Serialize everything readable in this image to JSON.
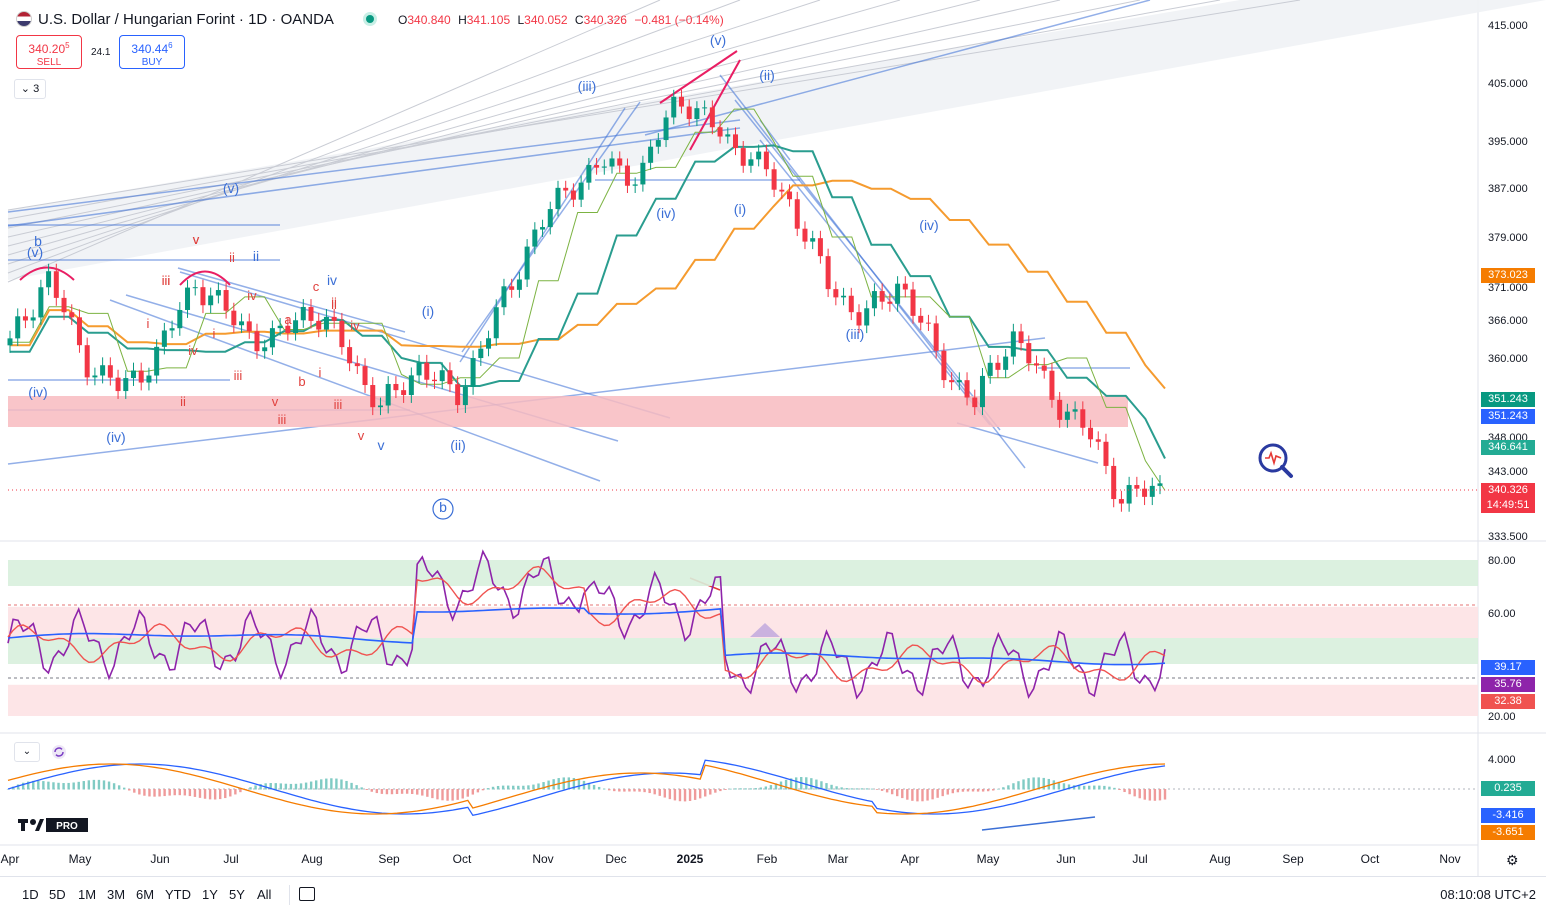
{
  "header": {
    "title": "U.S. Dollar / Hungarian Forint · 1D · OANDA",
    "ohlc": [
      {
        "k": "O",
        "v": "340.840"
      },
      {
        "k": "H",
        "v": "341.105"
      },
      {
        "k": "L",
        "v": "340.052"
      },
      {
        "k": "C",
        "v": "340.326"
      },
      {
        "k": "",
        "v": "−0.481 (−0.14%)"
      }
    ]
  },
  "trade": {
    "sell_price": "340.20",
    "sell_price_sup": "5",
    "sell_label": "SELL",
    "spread": "24.1",
    "buy_price": "340.44",
    "buy_price_sup": "6",
    "buy_label": "BUY",
    "collapse_label": "3"
  },
  "colors": {
    "up": "#089981",
    "down": "#f23645",
    "wave_blue": "#3b6fd6",
    "wave_red": "#e0413e",
    "ema_orange": "#f59b2f",
    "ema_teal": "#2a9d8f",
    "rsi_purple": "#8e24aa",
    "rsi_ma_red": "#f05350",
    "rsi_blue": "#2962ff"
  },
  "chart_data": [
    {
      "type": "line",
      "title": "U.S. Dollar / Hungarian Forint · 1D · OANDA",
      "x_axis": [
        "Apr",
        "May",
        "Jun",
        "Jul",
        "Aug",
        "Sep",
        "Oct",
        "Nov",
        "Dec",
        "2025",
        "Feb",
        "Mar",
        "Apr",
        "May",
        "Jun",
        "Jul",
        "Aug",
        "Sep",
        "Oct",
        "Nov"
      ],
      "y_ticks": [
        "415.000",
        "405.000",
        "395.000",
        "387.000",
        "379.000",
        "371.000",
        "366.000",
        "360.000",
        "348.000",
        "343.000",
        "333.500"
      ],
      "ylim": [
        333.5,
        415
      ],
      "close_series": [
        {
          "x": "Apr",
          "y": 362
        },
        {
          "x": "Apr",
          "y": 373
        },
        {
          "x": "May",
          "y": 360
        },
        {
          "x": "May",
          "y": 355
        },
        {
          "x": "Jun",
          "y": 361
        },
        {
          "x": "Jun",
          "y": 372
        },
        {
          "x": "Jul",
          "y": 366
        },
        {
          "x": "Jul",
          "y": 362
        },
        {
          "x": "Aug",
          "y": 368
        },
        {
          "x": "Aug",
          "y": 362
        },
        {
          "x": "Sep",
          "y": 352
        },
        {
          "x": "Sep",
          "y": 359
        },
        {
          "x": "Oct",
          "y": 354
        },
        {
          "x": "Oct",
          "y": 365
        },
        {
          "x": "Nov",
          "y": 378
        },
        {
          "x": "Nov",
          "y": 387
        },
        {
          "x": "Dec",
          "y": 391
        },
        {
          "x": "Dec",
          "y": 389
        },
        {
          "x": "2025",
          "y": 403
        },
        {
          "x": "2025",
          "y": 397
        },
        {
          "x": "Feb",
          "y": 392
        },
        {
          "x": "Feb",
          "y": 385
        },
        {
          "x": "Mar",
          "y": 372
        },
        {
          "x": "Mar",
          "y": 366
        },
        {
          "x": "Apr",
          "y": 372
        },
        {
          "x": "Apr",
          "y": 360
        },
        {
          "x": "May",
          "y": 353
        },
        {
          "x": "May",
          "y": 364
        },
        {
          "x": "Jun",
          "y": 355
        },
        {
          "x": "Jun",
          "y": 349
        },
        {
          "x": "Jul",
          "y": 339
        },
        {
          "x": "Jul",
          "y": 340.326
        }
      ],
      "price_labels": [
        {
          "text": "373.023",
          "color": "#f57c00"
        },
        {
          "text": "351.243",
          "color": "#089981"
        },
        {
          "text": "351.243",
          "color": "#2962ff"
        },
        {
          "text": "346.641",
          "color": "#22ab94"
        },
        {
          "text": "340.326",
          "color": "#f23645"
        },
        {
          "text": "14:49:51",
          "color": "#f23645"
        }
      ],
      "zone": {
        "from": 350,
        "to": 355,
        "color": "#f8bbbf"
      },
      "wave_labels_blue": [
        "(v)",
        "(iii)",
        "(ii)",
        "(i)",
        "(iv)",
        "(i)",
        "(iv)",
        "(iii)",
        "(v)",
        "(iv)",
        "(ii)",
        "b",
        "v",
        "iv",
        "ii",
        "(v)",
        "(iv)",
        "b"
      ],
      "wave_labels_red": [
        "v",
        "ii",
        "iii",
        "i",
        "iv",
        "i",
        "ii",
        "iii",
        "iv",
        "a",
        "b",
        "c",
        "ii",
        "iv",
        "iii",
        "v",
        "i",
        "iii",
        "v",
        "ii",
        "iii",
        "v"
      ]
    },
    {
      "type": "line",
      "title": "",
      "y_ticks": [
        "80.00",
        "60.00",
        "20.00"
      ],
      "ylim": [
        15,
        85
      ],
      "bands": [
        {
          "from": 70,
          "to": 80
        },
        {
          "from": 40,
          "to": 50
        }
      ],
      "red_bands": [
        {
          "from": 50,
          "to": 62
        },
        {
          "from": 20,
          "to": 32
        }
      ],
      "value_labels": [
        {
          "text": "39.17",
          "color": "#2962ff"
        },
        {
          "text": "35.76",
          "color": "#8e24aa"
        },
        {
          "text": "32.38",
          "color": "#f05350"
        }
      ]
    },
    {
      "type": "bar",
      "title": "",
      "y_ticks": [
        "4.000"
      ],
      "value_labels": [
        {
          "text": "0.235",
          "color": "#22ab94"
        },
        {
          "text": "-3.416",
          "color": "#2962ff"
        },
        {
          "text": "-3.651",
          "color": "#f57c00"
        }
      ]
    }
  ],
  "bottom": {
    "timeframes": [
      "1D",
      "5D",
      "1M",
      "3M",
      "6M",
      "YTD",
      "1Y",
      "5Y",
      "All"
    ],
    "clock": "08:10:08 UTC+2"
  },
  "icons": {
    "settings": "settings-icon",
    "calendar": "calendar-icon",
    "logo": "tradingview-logo"
  },
  "logo_text": "PRO"
}
